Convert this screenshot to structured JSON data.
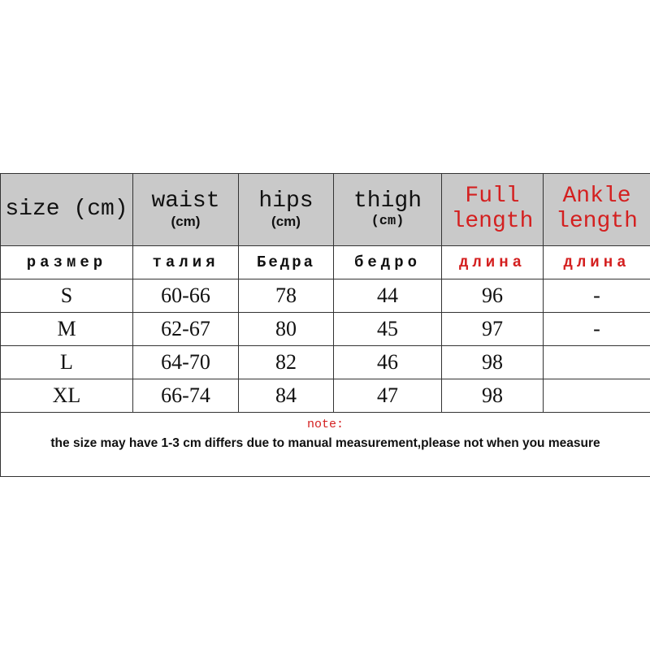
{
  "headers": [
    {
      "label": "size (cm)",
      "unit": ""
    },
    {
      "label": "waist",
      "unit": "(cm)"
    },
    {
      "label": "hips",
      "unit": "(cm)"
    },
    {
      "label": "thigh",
      "unit": "(cm)"
    },
    {
      "label": "Full length",
      "unit": ""
    },
    {
      "label": "Ankle length",
      "unit": ""
    }
  ],
  "russian": [
    "размер",
    "талия",
    "Бедра",
    "бедро",
    "длина",
    "длина"
  ],
  "rows": [
    [
      "S",
      "60-66",
      "78",
      "44",
      "96",
      "-"
    ],
    [
      "M",
      "62-67",
      "80",
      "45",
      "97",
      "-"
    ],
    [
      "L",
      "64-70",
      "82",
      "46",
      "98",
      ""
    ],
    [
      "XL",
      "66-74",
      "84",
      "47",
      "98",
      ""
    ]
  ],
  "note": {
    "label": "note:",
    "text": "the size may have 1-3 cm differs due to manual measurement,please not when you measure"
  },
  "colors": {
    "header_bg": "#c9c9c9",
    "red": "#d42020"
  }
}
